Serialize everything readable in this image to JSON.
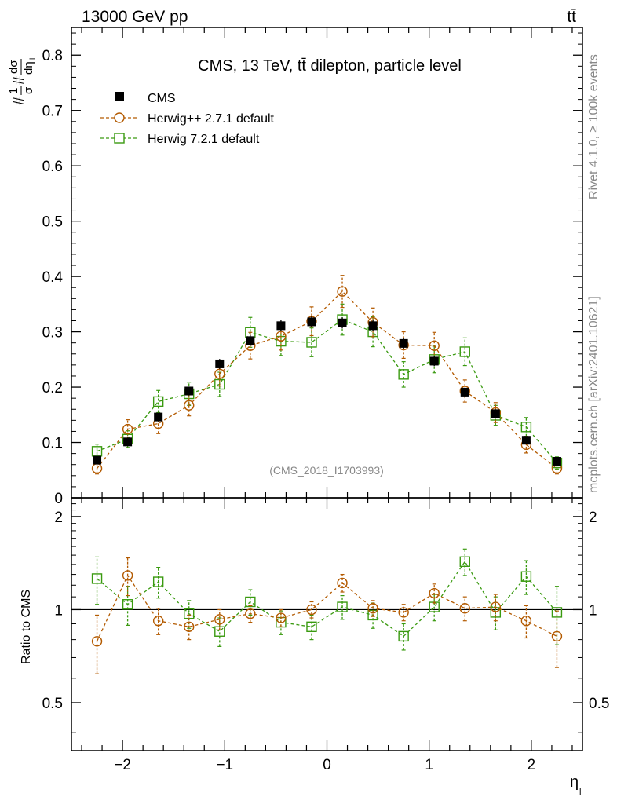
{
  "header": {
    "process": "13000 GeV pp",
    "final_state": "tt̄"
  },
  "side_labels": {
    "rivet": "Rivet 4.1.0, ≥ 100k events",
    "source": "mcplots.cern.ch [arXiv:2401.10621]"
  },
  "colors": {
    "cms": "#000000",
    "herwigpp": "#b35a00",
    "herwig7": "#3a9a10"
  },
  "chart_data": [
    {
      "type": "scatter",
      "title": "CMS, 13 TeV, tt̄ dilepton, particle level",
      "watermark": "(CMS_2018_I1703993)",
      "ylabel": "#1/σ #dσ/dη_l",
      "xlabel": "",
      "xlim": [
        -2.5,
        2.5
      ],
      "ylim": [
        0,
        0.85
      ],
      "yticks": [
        0,
        0.1,
        0.2,
        0.3,
        0.4,
        0.5,
        0.6,
        0.7,
        0.8
      ],
      "ytick_labels": [
        "0",
        "0.1",
        "0.2",
        "0.3",
        "0.4",
        "0.5",
        "0.6",
        "0.7",
        "0.8"
      ],
      "x": [
        -2.25,
        -1.95,
        -1.65,
        -1.35,
        -1.05,
        -0.75,
        -0.45,
        -0.15,
        0.15,
        0.45,
        0.75,
        1.05,
        1.35,
        1.65,
        1.95,
        2.25
      ],
      "series": [
        {
          "name": "CMS",
          "style": "filled-square",
          "values": [
            0.068,
            0.101,
            0.146,
            0.193,
            0.242,
            0.284,
            0.311,
            0.318,
            0.316,
            0.311,
            0.279,
            0.247,
            0.191,
            0.152,
            0.104,
            0.066
          ],
          "errors": [
            0.005,
            0.006,
            0.007,
            0.008,
            0.009,
            0.01,
            0.01,
            0.01,
            0.01,
            0.01,
            0.01,
            0.009,
            0.008,
            0.007,
            0.006,
            0.005
          ]
        },
        {
          "name": "Herwig++ 2.7.1 default",
          "style": "open-circle-dashed",
          "values": [
            0.053,
            0.124,
            0.134,
            0.167,
            0.224,
            0.275,
            0.292,
            0.319,
            0.373,
            0.317,
            0.276,
            0.275,
            0.193,
            0.154,
            0.096,
            0.053
          ],
          "errors": [
            0.01,
            0.017,
            0.018,
            0.019,
            0.022,
            0.024,
            0.025,
            0.026,
            0.029,
            0.026,
            0.024,
            0.024,
            0.02,
            0.018,
            0.015,
            0.01
          ]
        },
        {
          "name": "Herwig 7.2.1 default",
          "style": "open-square-dashed",
          "values": [
            0.084,
            0.106,
            0.174,
            0.188,
            0.205,
            0.299,
            0.283,
            0.281,
            0.322,
            0.3,
            0.223,
            0.25,
            0.264,
            0.149,
            0.128,
            0.063
          ],
          "errors": [
            0.013,
            0.015,
            0.02,
            0.021,
            0.022,
            0.027,
            0.026,
            0.026,
            0.028,
            0.027,
            0.023,
            0.024,
            0.025,
            0.018,
            0.017,
            0.011
          ]
        }
      ]
    },
    {
      "type": "scatter",
      "title": "",
      "xlabel": "η_l",
      "ylabel": "Ratio to CMS",
      "xlim": [
        -2.5,
        2.5
      ],
      "ylim": [
        0.35,
        2.3
      ],
      "yticks": [
        0.5,
        1,
        2
      ],
      "ytick_labels": [
        "0.5",
        "1",
        "2"
      ],
      "xticks": [
        -2,
        -1,
        0,
        1,
        2
      ],
      "xtick_labels": [
        "−2",
        "−1",
        "0",
        "1",
        "2"
      ],
      "x": [
        -2.25,
        -1.95,
        -1.65,
        -1.35,
        -1.05,
        -0.75,
        -0.45,
        -0.15,
        0.15,
        0.45,
        0.75,
        1.05,
        1.35,
        1.65,
        1.95,
        2.25
      ],
      "series": [
        {
          "name": "Herwig++ 2.7.1 default",
          "style": "open-circle-dashed",
          "values": [
            0.79,
            1.29,
            0.92,
            0.88,
            0.93,
            0.97,
            0.94,
            1.0,
            1.22,
            1.01,
            0.98,
            1.13,
            1.01,
            1.02,
            0.92,
            0.82
          ],
          "errors": [
            0.17,
            0.18,
            0.09,
            0.08,
            0.07,
            0.06,
            0.06,
            0.06,
            0.08,
            0.06,
            0.06,
            0.08,
            0.09,
            0.1,
            0.11,
            0.17
          ]
        },
        {
          "name": "Herwig 7.2.1 default",
          "style": "open-square-dashed",
          "values": [
            1.26,
            1.04,
            1.23,
            0.97,
            0.85,
            1.06,
            0.91,
            0.88,
            1.02,
            0.96,
            0.82,
            1.02,
            1.43,
            0.98,
            1.28,
            0.98
          ],
          "errors": [
            0.22,
            0.15,
            0.14,
            0.1,
            0.09,
            0.1,
            0.08,
            0.08,
            0.09,
            0.09,
            0.08,
            0.1,
            0.14,
            0.12,
            0.16,
            0.21
          ]
        }
      ]
    }
  ]
}
